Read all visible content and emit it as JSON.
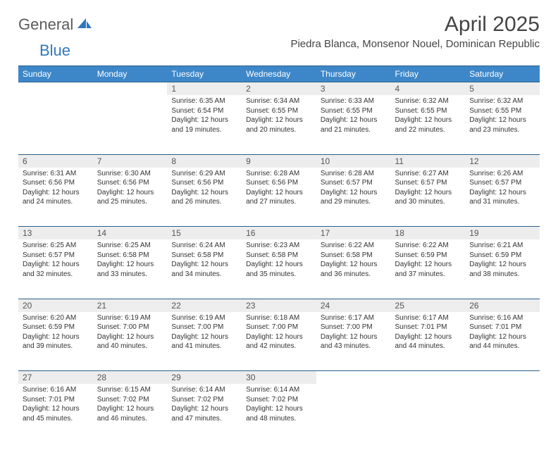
{
  "brand": {
    "general": "General",
    "blue": "Blue"
  },
  "title": "April 2025",
  "location": "Piedra Blanca, Monsenor Nouel, Dominican Republic",
  "colors": {
    "header_bg": "#3d87c9",
    "header_border": "#2b5f8a",
    "daynum_bg": "#ededed",
    "text": "#333333",
    "brand_gray": "#5b5b5b",
    "brand_blue": "#2f78bd"
  },
  "weekdays": [
    "Sunday",
    "Monday",
    "Tuesday",
    "Wednesday",
    "Thursday",
    "Friday",
    "Saturday"
  ],
  "first_weekday_index": 2,
  "days": [
    {
      "n": 1,
      "sr": "6:35 AM",
      "ss": "6:54 PM",
      "dl": "12 hours and 19 minutes."
    },
    {
      "n": 2,
      "sr": "6:34 AM",
      "ss": "6:55 PM",
      "dl": "12 hours and 20 minutes."
    },
    {
      "n": 3,
      "sr": "6:33 AM",
      "ss": "6:55 PM",
      "dl": "12 hours and 21 minutes."
    },
    {
      "n": 4,
      "sr": "6:32 AM",
      "ss": "6:55 PM",
      "dl": "12 hours and 22 minutes."
    },
    {
      "n": 5,
      "sr": "6:32 AM",
      "ss": "6:55 PM",
      "dl": "12 hours and 23 minutes."
    },
    {
      "n": 6,
      "sr": "6:31 AM",
      "ss": "6:56 PM",
      "dl": "12 hours and 24 minutes."
    },
    {
      "n": 7,
      "sr": "6:30 AM",
      "ss": "6:56 PM",
      "dl": "12 hours and 25 minutes."
    },
    {
      "n": 8,
      "sr": "6:29 AM",
      "ss": "6:56 PM",
      "dl": "12 hours and 26 minutes."
    },
    {
      "n": 9,
      "sr": "6:28 AM",
      "ss": "6:56 PM",
      "dl": "12 hours and 27 minutes."
    },
    {
      "n": 10,
      "sr": "6:28 AM",
      "ss": "6:57 PM",
      "dl": "12 hours and 29 minutes."
    },
    {
      "n": 11,
      "sr": "6:27 AM",
      "ss": "6:57 PM",
      "dl": "12 hours and 30 minutes."
    },
    {
      "n": 12,
      "sr": "6:26 AM",
      "ss": "6:57 PM",
      "dl": "12 hours and 31 minutes."
    },
    {
      "n": 13,
      "sr": "6:25 AM",
      "ss": "6:57 PM",
      "dl": "12 hours and 32 minutes."
    },
    {
      "n": 14,
      "sr": "6:25 AM",
      "ss": "6:58 PM",
      "dl": "12 hours and 33 minutes."
    },
    {
      "n": 15,
      "sr": "6:24 AM",
      "ss": "6:58 PM",
      "dl": "12 hours and 34 minutes."
    },
    {
      "n": 16,
      "sr": "6:23 AM",
      "ss": "6:58 PM",
      "dl": "12 hours and 35 minutes."
    },
    {
      "n": 17,
      "sr": "6:22 AM",
      "ss": "6:58 PM",
      "dl": "12 hours and 36 minutes."
    },
    {
      "n": 18,
      "sr": "6:22 AM",
      "ss": "6:59 PM",
      "dl": "12 hours and 37 minutes."
    },
    {
      "n": 19,
      "sr": "6:21 AM",
      "ss": "6:59 PM",
      "dl": "12 hours and 38 minutes."
    },
    {
      "n": 20,
      "sr": "6:20 AM",
      "ss": "6:59 PM",
      "dl": "12 hours and 39 minutes."
    },
    {
      "n": 21,
      "sr": "6:19 AM",
      "ss": "7:00 PM",
      "dl": "12 hours and 40 minutes."
    },
    {
      "n": 22,
      "sr": "6:19 AM",
      "ss": "7:00 PM",
      "dl": "12 hours and 41 minutes."
    },
    {
      "n": 23,
      "sr": "6:18 AM",
      "ss": "7:00 PM",
      "dl": "12 hours and 42 minutes."
    },
    {
      "n": 24,
      "sr": "6:17 AM",
      "ss": "7:00 PM",
      "dl": "12 hours and 43 minutes."
    },
    {
      "n": 25,
      "sr": "6:17 AM",
      "ss": "7:01 PM",
      "dl": "12 hours and 44 minutes."
    },
    {
      "n": 26,
      "sr": "6:16 AM",
      "ss": "7:01 PM",
      "dl": "12 hours and 44 minutes."
    },
    {
      "n": 27,
      "sr": "6:16 AM",
      "ss": "7:01 PM",
      "dl": "12 hours and 45 minutes."
    },
    {
      "n": 28,
      "sr": "6:15 AM",
      "ss": "7:02 PM",
      "dl": "12 hours and 46 minutes."
    },
    {
      "n": 29,
      "sr": "6:14 AM",
      "ss": "7:02 PM",
      "dl": "12 hours and 47 minutes."
    },
    {
      "n": 30,
      "sr": "6:14 AM",
      "ss": "7:02 PM",
      "dl": "12 hours and 48 minutes."
    }
  ],
  "labels": {
    "sunrise": "Sunrise:",
    "sunset": "Sunset:",
    "daylight": "Daylight:"
  }
}
